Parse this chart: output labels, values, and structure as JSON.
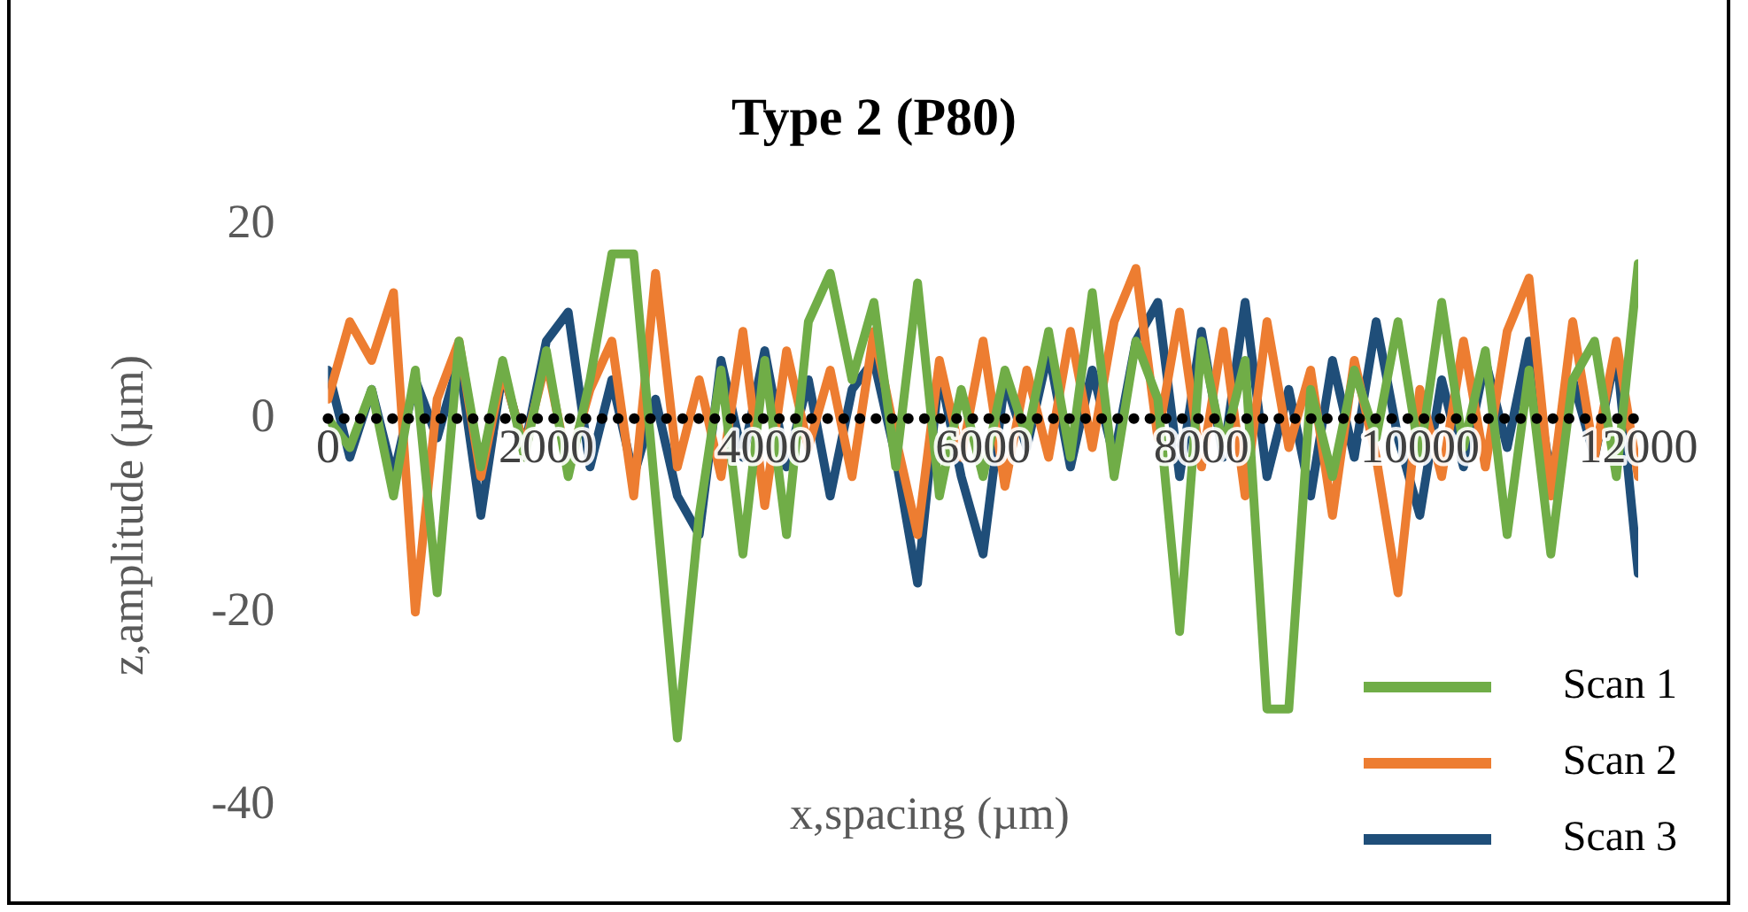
{
  "chart_data": {
    "type": "line",
    "title": "Type 2 (P80)",
    "xlabel": "x,spacing (µm)",
    "ylabel": "z,amplitude (µm)",
    "x": [
      0,
      200,
      400,
      600,
      800,
      1000,
      1200,
      1400,
      1600,
      1800,
      2000,
      2200,
      2400,
      2600,
      2800,
      3000,
      3200,
      3400,
      3600,
      3800,
      4000,
      4200,
      4400,
      4600,
      4800,
      5000,
      5200,
      5400,
      5600,
      5800,
      6000,
      6200,
      6400,
      6600,
      6800,
      7000,
      7200,
      7400,
      7600,
      7800,
      8000,
      8200,
      8400,
      8600,
      8800,
      9000,
      9200,
      9400,
      9600,
      9800,
      10000,
      10200,
      10400,
      10600,
      10800,
      11000,
      11200,
      11400,
      11600,
      11800,
      12000
    ],
    "series": [
      {
        "name": "Scan 1",
        "color": "#70ad47",
        "values": [
          0,
          -3,
          3,
          -8,
          5,
          -18,
          8,
          -5,
          6,
          -4,
          7,
          -6,
          4,
          17,
          17,
          -8,
          -33,
          -10,
          5,
          -14,
          6,
          -12,
          10,
          15,
          4,
          12,
          -5,
          14,
          -8,
          3,
          -6,
          5,
          -2,
          9,
          -4,
          13,
          -6,
          8,
          2,
          -22,
          8,
          -3,
          6,
          -30,
          -30,
          3,
          -6,
          5,
          -2,
          10,
          -4,
          12,
          -3,
          7,
          -12,
          5,
          -14,
          4,
          8,
          -6,
          16
        ]
      },
      {
        "name": "Scan 2",
        "color": "#ed7d31",
        "values": [
          2,
          10,
          6,
          13,
          -20,
          2,
          8,
          -6,
          5,
          -3,
          6,
          -5,
          3,
          8,
          -8,
          15,
          -5,
          4,
          -6,
          9,
          -9,
          7,
          -3,
          5,
          -6,
          9,
          -2,
          -12,
          6,
          -4,
          8,
          -7,
          5,
          -4,
          9,
          -3,
          10,
          15.5,
          -2,
          11,
          -5,
          9,
          -8,
          10,
          -3,
          5,
          -10,
          6,
          -4,
          -18,
          3,
          -6,
          8,
          -5,
          9,
          14.5,
          -8,
          10,
          -4,
          8,
          -6
        ]
      },
      {
        "name": "Scan 3",
        "color": "#1f4e79",
        "values": [
          5,
          -4,
          3,
          -6,
          4,
          -2,
          6,
          -10,
          5,
          -3,
          8,
          11,
          -5,
          4,
          -6,
          2,
          -8,
          -12,
          6,
          -4,
          7,
          -5,
          4,
          -8,
          3,
          6,
          -4,
          -17,
          5,
          -6,
          -14,
          4,
          -3,
          7,
          -5,
          5,
          -4,
          8,
          12,
          -6,
          9,
          -4,
          12,
          -6,
          3,
          -8,
          6,
          -4,
          10,
          -2,
          -10,
          4,
          -5,
          6,
          -3,
          8,
          -6,
          4,
          -4,
          7,
          -16
        ]
      }
    ],
    "xlim": [
      0,
      12000
    ],
    "xticks": [
      0,
      2000,
      4000,
      6000,
      8000,
      10000,
      12000
    ],
    "ylim": [
      -40,
      20
    ],
    "yticks": [
      -40,
      -20,
      0,
      20
    ],
    "ref_lines": [
      {
        "axis": "y",
        "value": 0,
        "color": "#000000",
        "line_style": "dotted"
      }
    ],
    "legend": "bottom right",
    "marker": "none",
    "line_style": "solid"
  }
}
